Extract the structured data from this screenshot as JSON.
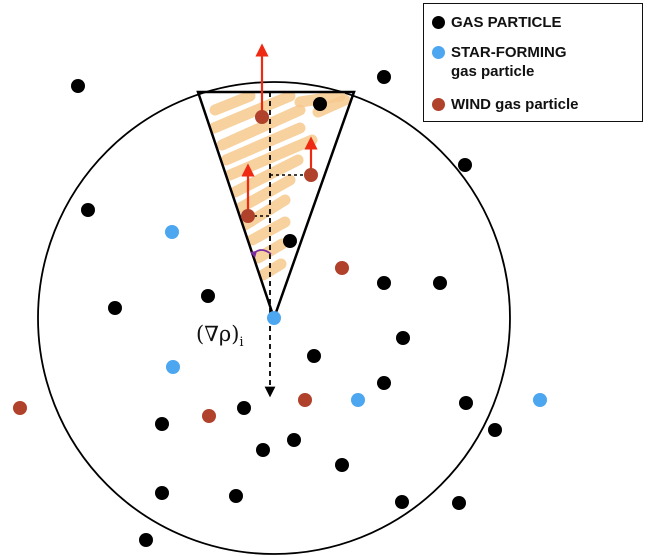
{
  "colors": {
    "gas": "#000000",
    "star_forming": "#4da6f0",
    "wind": "#b0412a",
    "velocity_arrow": "#ee2a12",
    "hatch": "#f6c98e",
    "angle_arc": "#7a2ba0"
  },
  "legend": {
    "items": [
      {
        "label": "GAS PARTICLE",
        "color": "#000000"
      },
      {
        "label": "STAR-FORMING\ngas particle",
        "color": "#4da6f0"
      },
      {
        "label": "WIND gas particle",
        "color": "#b0412a"
      }
    ]
  },
  "gradient_label": {
    "main": "(∇ρ)",
    "sub": "i"
  }
}
